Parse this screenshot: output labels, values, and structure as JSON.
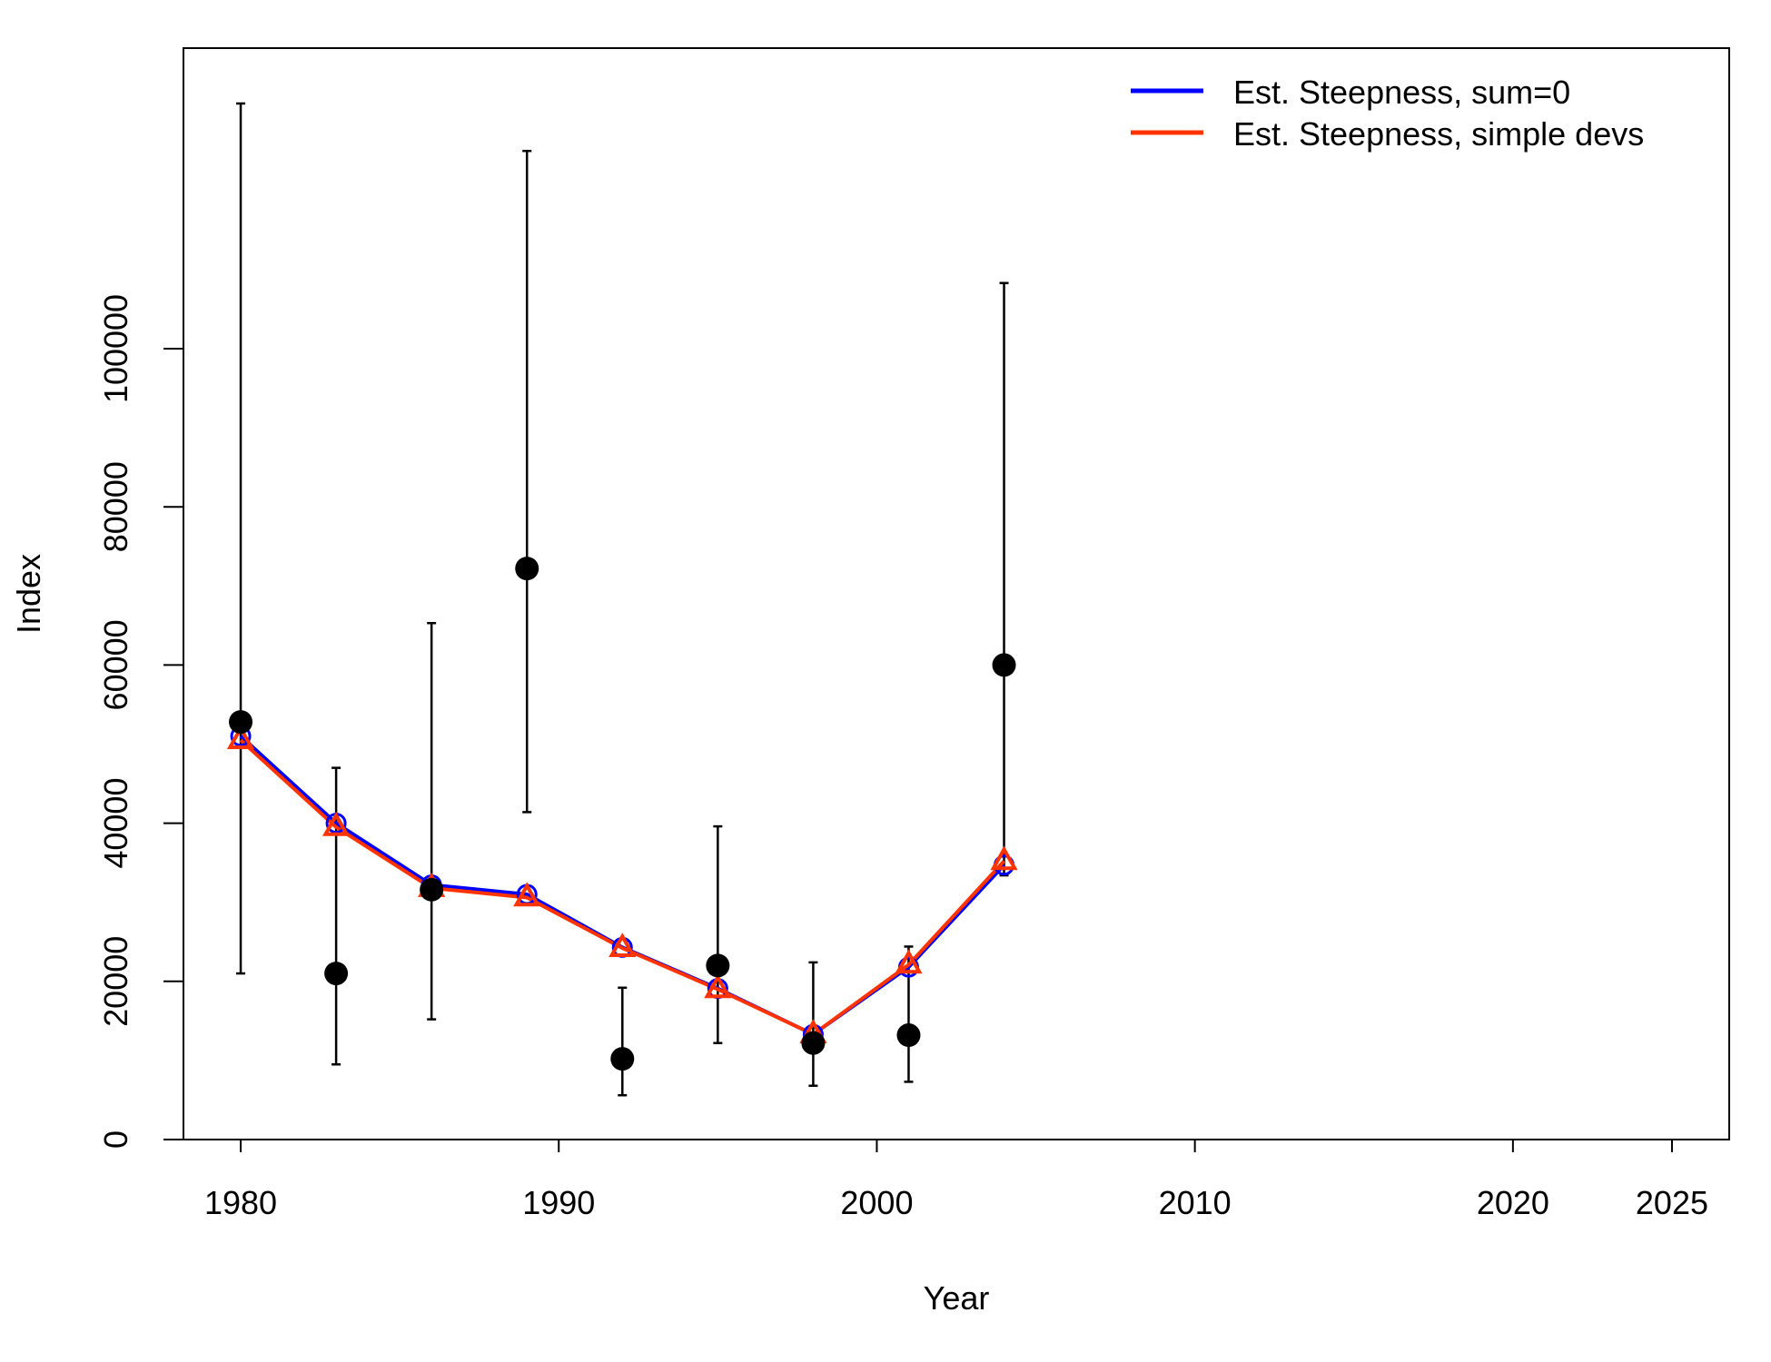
{
  "chart_data": {
    "type": "line",
    "xlabel": "Year",
    "ylabel": "Index",
    "xlim": [
      1978.2,
      2026.8
    ],
    "ylim": [
      0,
      138000
    ],
    "x_ticks": [
      1980,
      1990,
      2000,
      2010,
      2020,
      2025
    ],
    "y_ticks": [
      0,
      20000,
      40000,
      60000,
      80000,
      100000
    ],
    "grid": false,
    "legend_position": "top-right",
    "observed": {
      "x": [
        1980,
        1983,
        1986,
        1989,
        1992,
        1995,
        1998,
        2001,
        2004
      ],
      "y": [
        52800,
        21000,
        31600,
        72200,
        10200,
        22000,
        12200,
        13200,
        60000
      ],
      "lower": [
        21000,
        9500,
        15200,
        41400,
        5600,
        12200,
        6800,
        7300,
        33400
      ],
      "upper": [
        131000,
        47000,
        65300,
        125000,
        19200,
        39600,
        22400,
        24400,
        108300
      ],
      "color": "#000000"
    },
    "series": [
      {
        "name": "Est. Steepness, sum=0",
        "color": "#0000FF",
        "marker": "circle",
        "x": [
          1980,
          1983,
          1986,
          1989,
          1992,
          1995,
          1998,
          2001,
          2004
        ],
        "values": [
          51000,
          40000,
          32200,
          31000,
          24300,
          19100,
          13300,
          21800,
          34700
        ]
      },
      {
        "name": "Est. Steepness, simple devs",
        "color": "#FF3300",
        "marker": "triangle",
        "x": [
          1980,
          1983,
          1986,
          1989,
          1992,
          1995,
          1998,
          2001,
          2004
        ],
        "values": [
          50500,
          39500,
          31800,
          30600,
          24200,
          19000,
          13300,
          22100,
          35200
        ]
      }
    ]
  }
}
